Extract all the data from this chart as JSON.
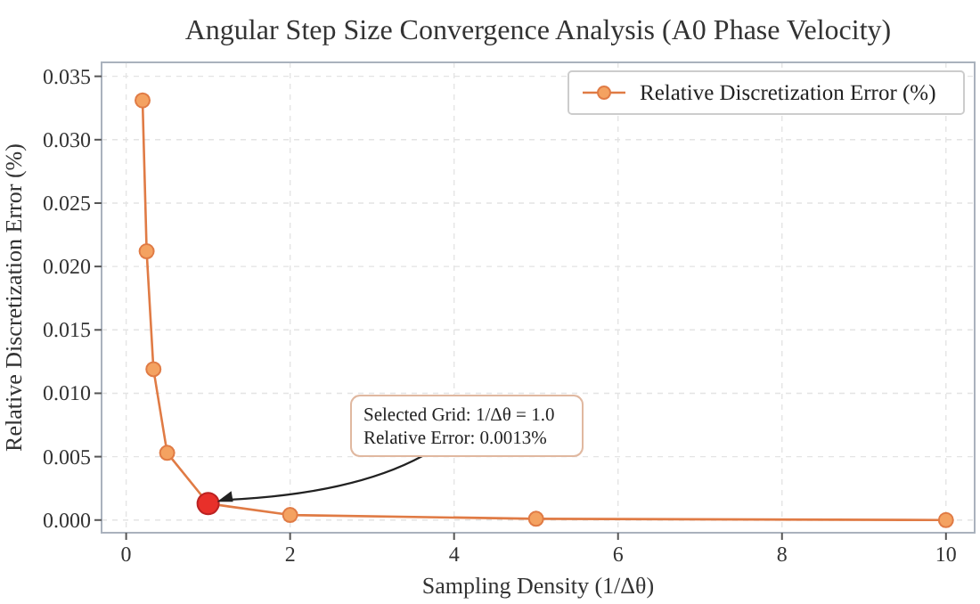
{
  "chart_data": {
    "type": "line",
    "title": "Angular Step Size Convergence Analysis (A0 Phase Velocity)",
    "xlabel": "Sampling Density (1/Δθ)",
    "ylabel": "Relative Discretization Error (%)",
    "x": [
      0.2,
      0.25,
      0.333,
      0.5,
      1,
      2,
      5,
      10
    ],
    "series": [
      {
        "name": "Relative Discretization Error (%)",
        "color": "#e07b45",
        "values": [
          0.0331,
          0.0212,
          0.0119,
          0.0053,
          0.0013,
          0.0004,
          0.0001,
          0.0
        ],
        "marker": "circle"
      },
      {
        "type": "scatter",
        "color": "#e8302a",
        "x": [
          1
        ],
        "values": [
          0.0013
        ],
        "marker": "circle"
      }
    ],
    "xlim": [
      -0.3,
      10.35
    ],
    "xticks": [
      0,
      2,
      4,
      6,
      8,
      10
    ],
    "ylim": [
      -0.001,
      0.0361
    ],
    "yticks": [
      {
        "value": 0,
        "label": "0.000"
      },
      {
        "value": 0.005,
        "label": "0.005"
      },
      {
        "value": 0.01,
        "label": "0.010"
      },
      {
        "value": 0.015,
        "label": "0.015"
      },
      {
        "value": 0.02,
        "label": "0.020"
      },
      {
        "value": 0.025,
        "label": "0.025"
      },
      {
        "value": 0.03,
        "label": "0.030"
      },
      {
        "value": 0.035,
        "label": "0.035"
      }
    ],
    "grid": true,
    "legend": "top right",
    "annotations": [
      {
        "text": "Selected Grid: 1/Δθ = 1.0\nRelative Error: 0.0013%",
        "x": 1,
        "y": 0.0013
      }
    ]
  }
}
